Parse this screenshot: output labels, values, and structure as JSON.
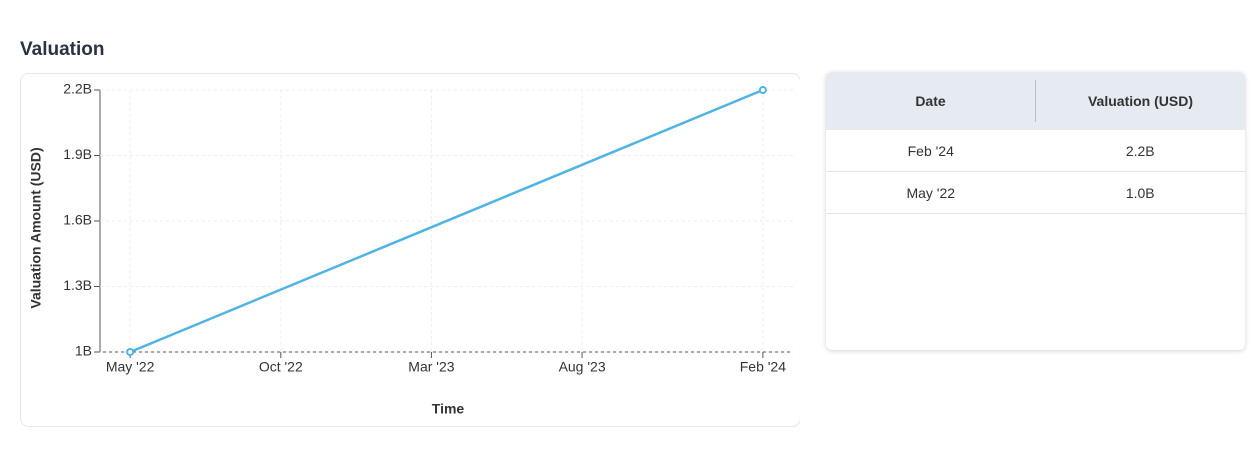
{
  "chart_data": {
    "type": "line",
    "title": "Valuation",
    "x_label": "Time",
    "y_label": "Valuation Amount (USD)",
    "series": [
      {
        "name": "Valuation",
        "color": "#4fb3e3",
        "x": [
          "2022-05",
          "2024-02"
        ],
        "values": [
          1.0,
          2.2
        ]
      }
    ],
    "xlim": [
      "2022-04",
      "2024-03"
    ],
    "xticks": [
      {
        "value": "2022-05",
        "label": "May '22"
      },
      {
        "value": "2022-10",
        "label": "Oct '22"
      },
      {
        "value": "2023-03",
        "label": "Mar '23"
      },
      {
        "value": "2023-08",
        "label": "Aug '23"
      },
      {
        "value": "2024-02",
        "label": "Feb '24"
      }
    ],
    "ylim": [
      1,
      2.2
    ],
    "yticks": [
      {
        "value": 1,
        "label": "1B"
      },
      {
        "value": 1.3,
        "label": "1.3B"
      },
      {
        "value": 1.6,
        "label": "1.6B"
      },
      {
        "value": 1.9,
        "label": "1.9B"
      },
      {
        "value": 2.2,
        "label": "2.2B"
      }
    ],
    "grid": true
  },
  "table": {
    "columns": [
      "Date",
      "Valuation (USD)"
    ],
    "rows": [
      [
        "Feb '24",
        "2.2B"
      ],
      [
        "May '22",
        "1.0B"
      ]
    ]
  }
}
